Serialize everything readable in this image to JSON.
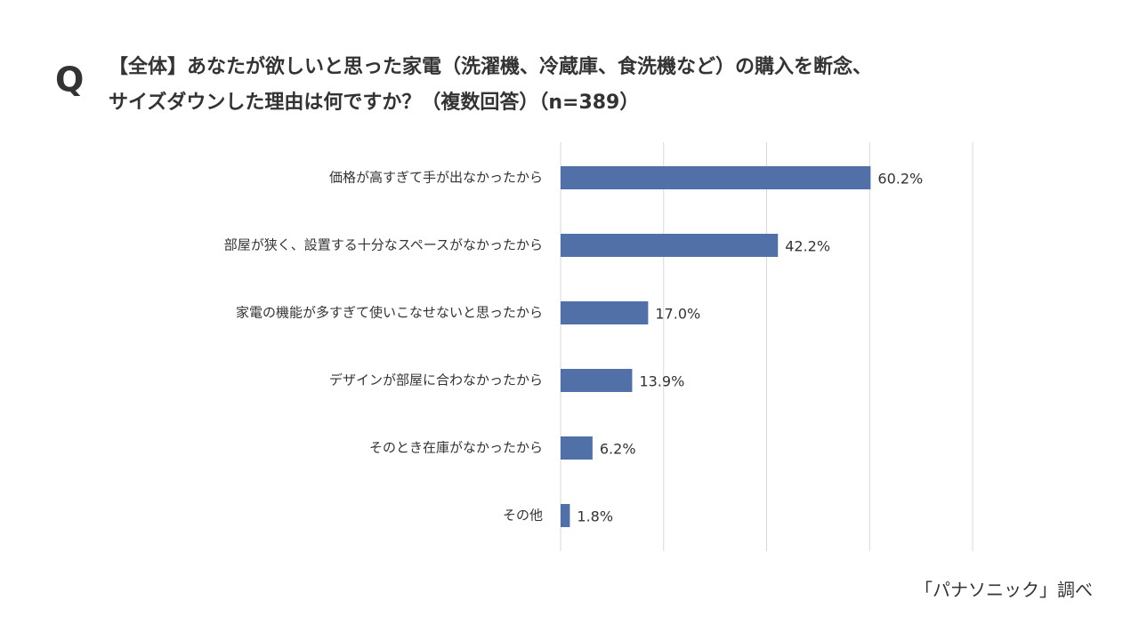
{
  "chart_data": {
    "type": "barh",
    "marker": "Q",
    "title": [
      "【全体】あなたが欲しいと思った家電（洗濯機、冷蔵庫、食洗機など）の購入を断念、",
      "サイズダウンした理由は何ですか？（複数回答）（n=389）"
    ],
    "categories": [
      "価格が高すぎて手が出なかったから",
      "部屋が狭く、設置する十分なスペースがなかったから",
      "家電の機能が多すぎて使いこなせないと思ったから",
      "デザインが部屋に合わなかったから",
      "そのとき在庫がなかったから",
      "その他"
    ],
    "values": [
      60.2,
      42.2,
      17.0,
      13.9,
      6.2,
      1.8
    ],
    "value_labels": [
      "60.2%",
      "42.2%",
      "17.0%",
      "13.9%",
      "6.2%",
      "1.8%"
    ],
    "color": "#5270a8",
    "xlim": [
      0,
      80
    ],
    "xticks": [
      0,
      20,
      40,
      60,
      80
    ],
    "grid": true,
    "source": "「パナソニック」調べ"
  }
}
